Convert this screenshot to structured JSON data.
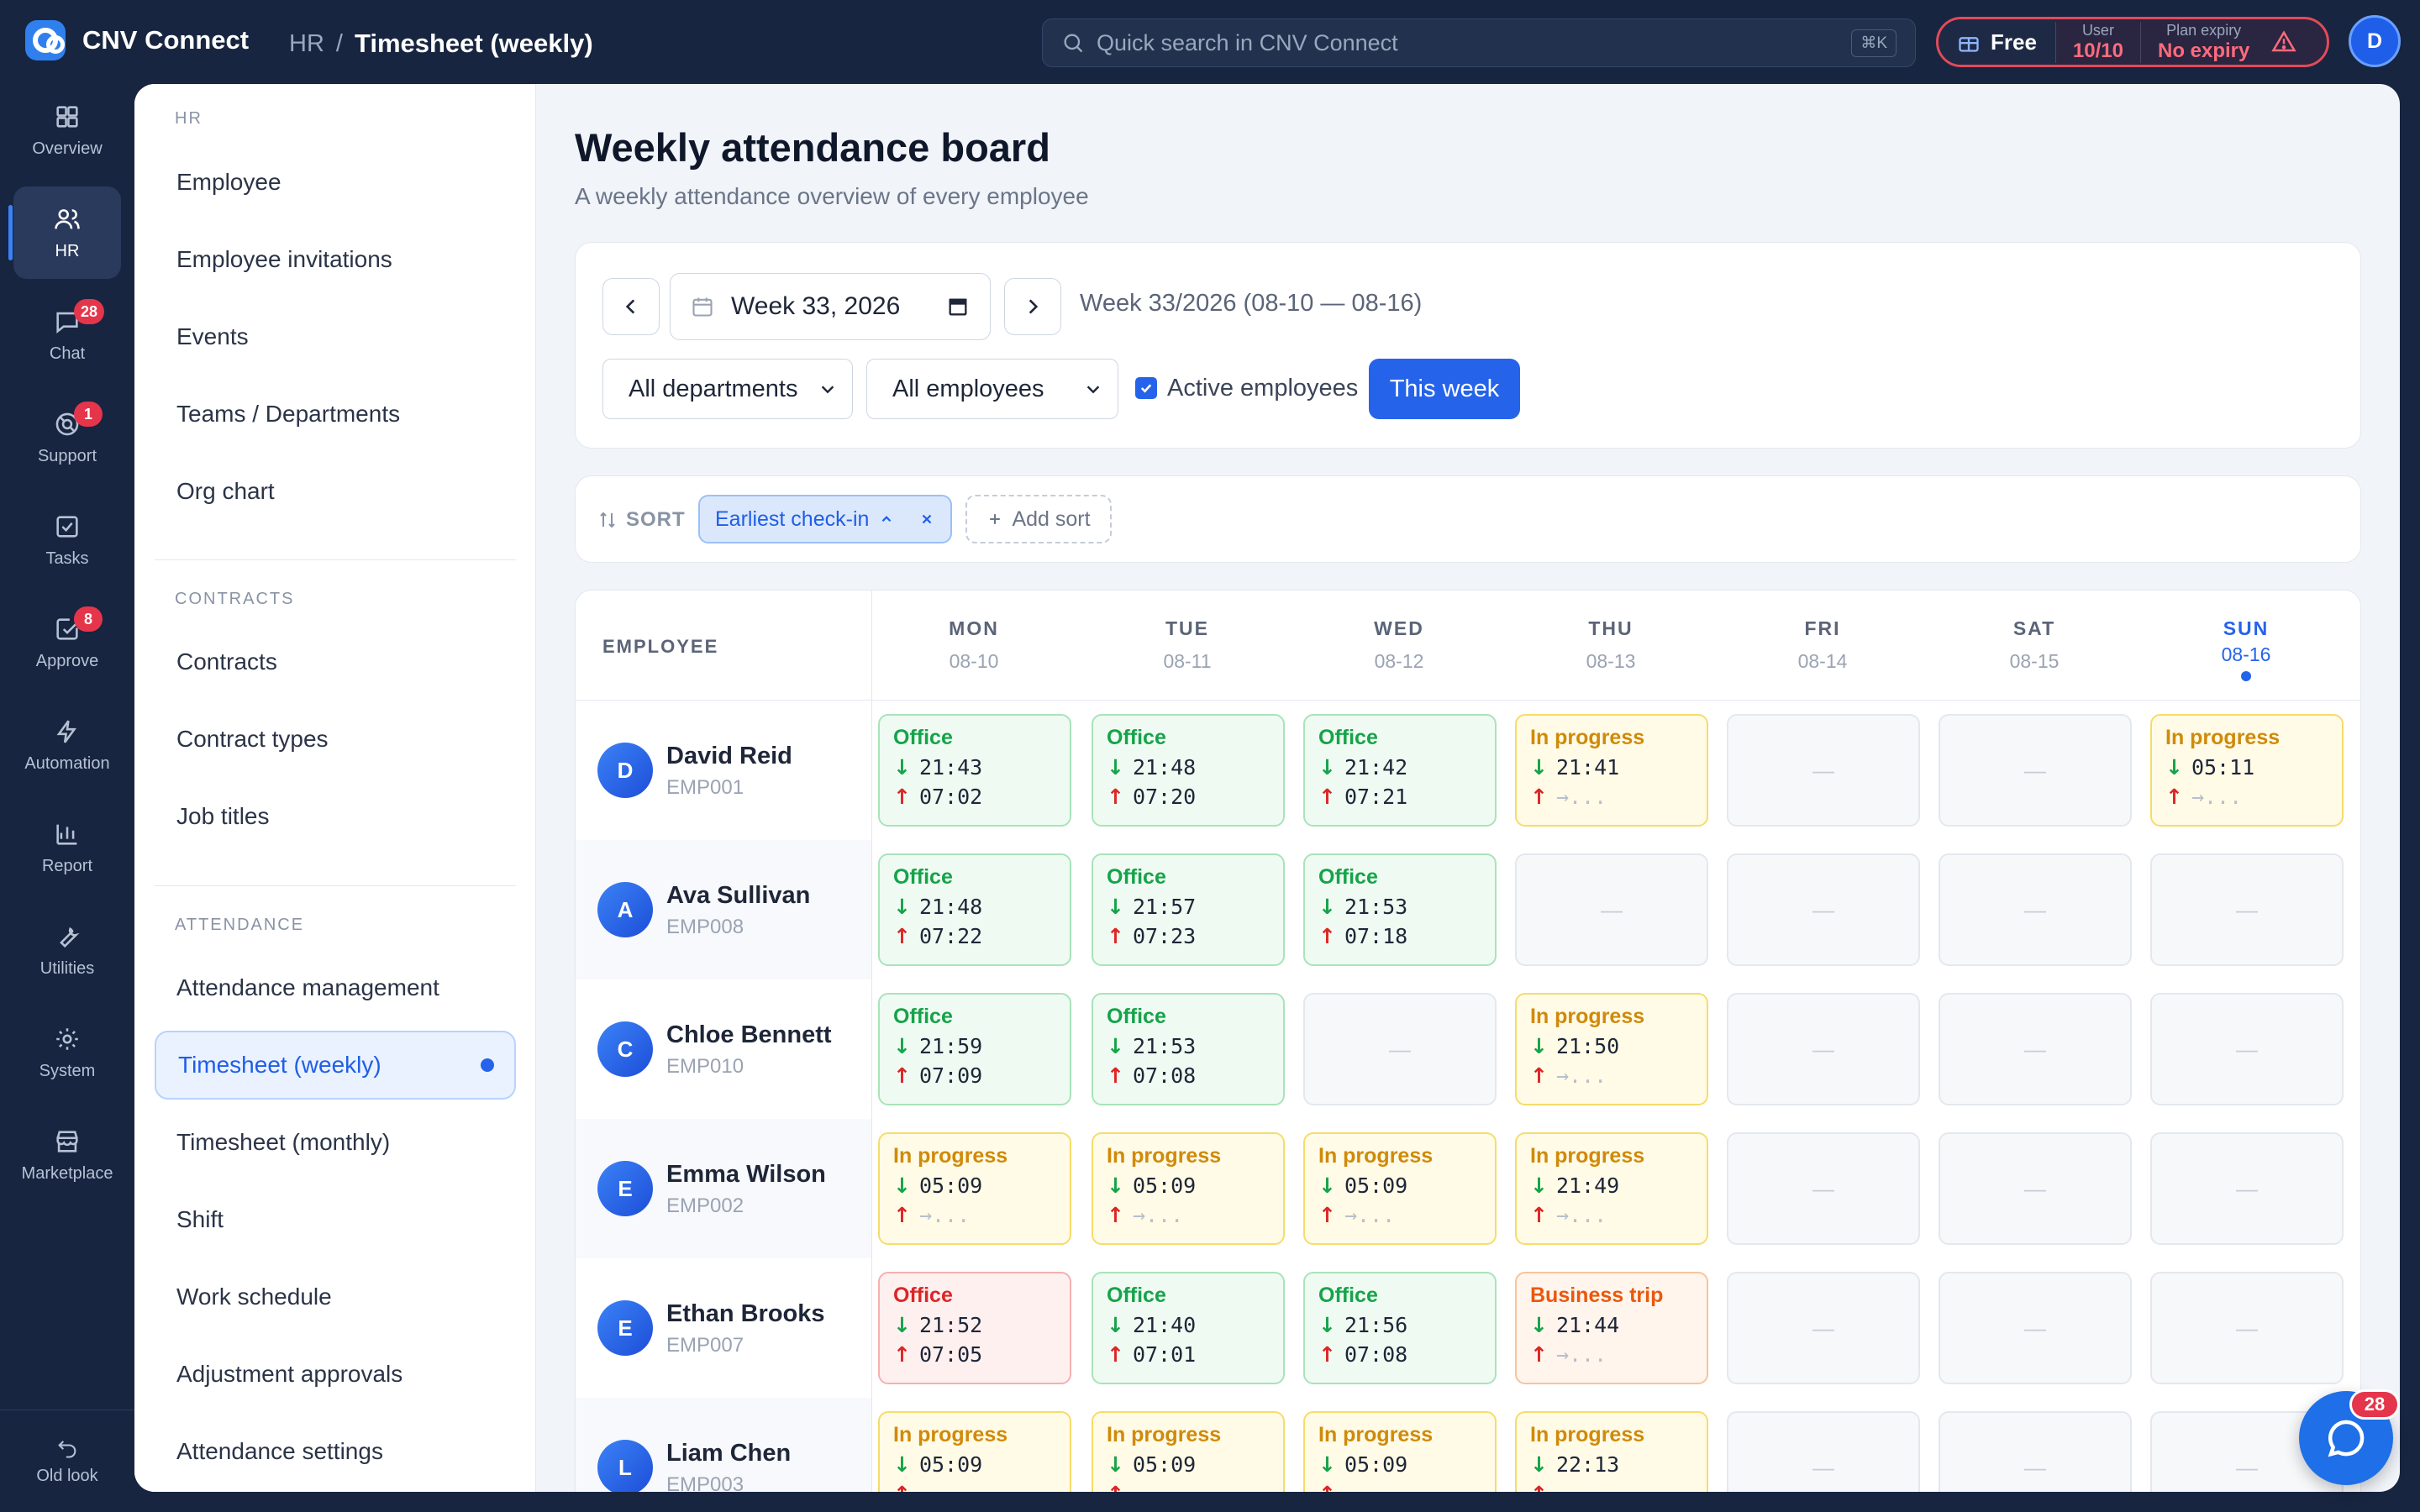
{
  "app": {
    "title": "CNV Connect"
  },
  "breadcrumb": {
    "parent": "HR",
    "separator": "/",
    "current": "Timesheet (weekly)"
  },
  "search": {
    "placeholder": "Quick search in CNV Connect",
    "shortcut": "⌘K"
  },
  "plan": {
    "name": "Free",
    "user_label": "User",
    "user_value": "10/10",
    "expiry_label": "Plan expiry",
    "expiry_value": "No expiry"
  },
  "user": {
    "initial": "D"
  },
  "rail": {
    "items": [
      {
        "label": "Overview",
        "icon": "grid-icon"
      },
      {
        "label": "HR",
        "icon": "users-icon"
      },
      {
        "label": "Chat",
        "icon": "chat-icon",
        "badge": "28"
      },
      {
        "label": "Support",
        "icon": "lifebuoy-icon",
        "badge": "1"
      },
      {
        "label": "Tasks",
        "icon": "checkbox-icon"
      },
      {
        "label": "Approve",
        "icon": "approve-icon",
        "badge": "8"
      },
      {
        "label": "Automation",
        "icon": "bolt-icon"
      },
      {
        "label": "Report",
        "icon": "bar-chart-icon"
      },
      {
        "label": "Utilities",
        "icon": "wrench-icon"
      },
      {
        "label": "System",
        "icon": "gear-icon"
      },
      {
        "label": "Marketplace",
        "icon": "store-icon"
      }
    ],
    "old_look": "Old look"
  },
  "sidebar": {
    "hr_title": "HR",
    "hr_items": [
      "Employee",
      "Employee invitations",
      "Events",
      "Teams / Departments",
      "Org chart"
    ],
    "contracts_title": "CONTRACTS",
    "contracts_items": [
      "Contracts",
      "Contract types",
      "Job titles"
    ],
    "attendance_title": "ATTENDANCE",
    "attendance_items": [
      "Attendance management",
      "Timesheet (weekly)",
      "Timesheet (monthly)",
      "Shift",
      "Work schedule",
      "Adjustment approvals",
      "Attendance settings"
    ]
  },
  "page": {
    "title": "Weekly attendance board",
    "subtitle": "A weekly attendance overview of every employee"
  },
  "filters": {
    "week_value": "Week 33, 2026",
    "week_range": "Week 33/2026 (08-10 — 08-16)",
    "department": "All departments",
    "employees": "All employees",
    "active_label": "Active employees",
    "active_checked": true,
    "this_week": "This week"
  },
  "sort": {
    "label": "SORT",
    "chip": "Earliest check-in",
    "add": "Add sort"
  },
  "grid": {
    "employee_header": "EMPLOYEE",
    "days": [
      {
        "name": "MON",
        "date": "08-10"
      },
      {
        "name": "TUE",
        "date": "08-11"
      },
      {
        "name": "WED",
        "date": "08-12"
      },
      {
        "name": "THU",
        "date": "08-13"
      },
      {
        "name": "FRI",
        "date": "08-14"
      },
      {
        "name": "SAT",
        "date": "08-15"
      },
      {
        "name": "SUN",
        "date": "08-16",
        "today": true
      }
    ],
    "empty_mark": "—",
    "pending_mark": "→...",
    "rows": [
      {
        "initial": "D",
        "name": "David Reid",
        "code": "EMP001",
        "cells": [
          {
            "type": "office",
            "label": "Office",
            "in": "21:43",
            "out": "07:02"
          },
          {
            "type": "office",
            "label": "Office",
            "in": "21:48",
            "out": "07:20"
          },
          {
            "type": "office",
            "label": "Office",
            "in": "21:42",
            "out": "07:21"
          },
          {
            "type": "progress",
            "label": "In progress",
            "in": "21:41",
            "out": ""
          },
          {
            "type": "empty"
          },
          {
            "type": "empty"
          },
          {
            "type": "progress",
            "label": "In progress",
            "in": "05:11",
            "out": ""
          }
        ]
      },
      {
        "initial": "A",
        "name": "Ava Sullivan",
        "code": "EMP008",
        "cells": [
          {
            "type": "office",
            "label": "Office",
            "in": "21:48",
            "out": "07:22"
          },
          {
            "type": "office",
            "label": "Office",
            "in": "21:57",
            "out": "07:23"
          },
          {
            "type": "office",
            "label": "Office",
            "in": "21:53",
            "out": "07:18"
          },
          {
            "type": "empty"
          },
          {
            "type": "empty"
          },
          {
            "type": "empty"
          },
          {
            "type": "empty"
          }
        ]
      },
      {
        "initial": "C",
        "name": "Chloe Bennett",
        "code": "EMP010",
        "cells": [
          {
            "type": "office",
            "label": "Office",
            "in": "21:59",
            "out": "07:09"
          },
          {
            "type": "office",
            "label": "Office",
            "in": "21:53",
            "out": "07:08"
          },
          {
            "type": "empty"
          },
          {
            "type": "progress",
            "label": "In progress",
            "in": "21:50",
            "out": ""
          },
          {
            "type": "empty"
          },
          {
            "type": "empty"
          },
          {
            "type": "empty"
          }
        ]
      },
      {
        "initial": "E",
        "name": "Emma Wilson",
        "code": "EMP002",
        "cells": [
          {
            "type": "progress",
            "label": "In progress",
            "in": "05:09",
            "out": ""
          },
          {
            "type": "progress",
            "label": "In progress",
            "in": "05:09",
            "out": ""
          },
          {
            "type": "progress",
            "label": "In progress",
            "in": "05:09",
            "out": ""
          },
          {
            "type": "progress",
            "label": "In progress",
            "in": "21:49",
            "out": ""
          },
          {
            "type": "empty"
          },
          {
            "type": "empty"
          },
          {
            "type": "empty"
          }
        ]
      },
      {
        "initial": "E",
        "name": "Ethan Brooks",
        "code": "EMP007",
        "cells": [
          {
            "type": "late",
            "label": "Office",
            "in": "21:52",
            "out": "07:05"
          },
          {
            "type": "office",
            "label": "Office",
            "in": "21:40",
            "out": "07:01"
          },
          {
            "type": "office",
            "label": "Office",
            "in": "21:56",
            "out": "07:08"
          },
          {
            "type": "trip",
            "label": "Business trip",
            "in": "21:44",
            "out": ""
          },
          {
            "type": "empty"
          },
          {
            "type": "empty"
          },
          {
            "type": "empty"
          }
        ]
      },
      {
        "initial": "L",
        "name": "Liam Chen",
        "code": "EMP003",
        "cells": [
          {
            "type": "progress",
            "label": "In progress",
            "in": "05:09",
            "out": ""
          },
          {
            "type": "progress",
            "label": "In progress",
            "in": "05:09",
            "out": ""
          },
          {
            "type": "progress",
            "label": "In progress",
            "in": "05:09",
            "out": ""
          },
          {
            "type": "progress",
            "label": "In progress",
            "in": "22:13",
            "out": ""
          },
          {
            "type": "empty"
          },
          {
            "type": "empty"
          },
          {
            "type": "empty"
          }
        ]
      }
    ]
  },
  "chat_fab": {
    "badge": "28",
    "icon": "chat-bubble-icon"
  }
}
